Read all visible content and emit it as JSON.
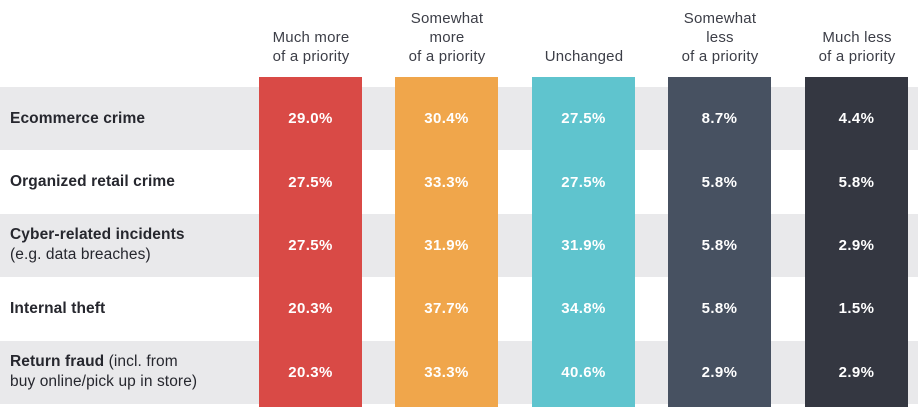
{
  "chart_data": {
    "type": "table",
    "title": "",
    "legend_position": "top",
    "columns": [
      {
        "label": "Much more of a priority",
        "lines": [
          "Much more",
          "of a priority",
          ""
        ],
        "color": "#D94A46"
      },
      {
        "label": "Somewhat more of a priority",
        "lines": [
          "Somewhat",
          "more",
          "of a priority"
        ],
        "color": "#F0A64B"
      },
      {
        "label": "Unchanged",
        "lines": [
          "Unchanged",
          "",
          ""
        ],
        "color": "#5FC4CE"
      },
      {
        "label": "Somewhat less of a priority",
        "lines": [
          "Somewhat",
          "less",
          "of a priority"
        ],
        "color": "#475161"
      },
      {
        "label": "Much less of a priority",
        "lines": [
          "Much less",
          "of a priority",
          ""
        ],
        "color": "#343741"
      }
    ],
    "rows": [
      {
        "label_bold": "Ecommerce crime",
        "label_normal": "",
        "label_line2": "",
        "values": [
          "29.0%",
          "30.4%",
          "27.5%",
          "8.7%",
          "4.4%"
        ],
        "values_numeric": [
          29.0,
          30.4,
          27.5,
          8.7,
          4.4
        ]
      },
      {
        "label_bold": "Organized retail crime",
        "label_normal": "",
        "label_line2": "",
        "values": [
          "27.5%",
          "33.3%",
          "27.5%",
          "5.8%",
          "5.8%"
        ],
        "values_numeric": [
          27.5,
          33.3,
          27.5,
          5.8,
          5.8
        ]
      },
      {
        "label_bold": "Cyber-related incidents",
        "label_normal": "",
        "label_line2": "(e.g. data breaches)",
        "values": [
          "27.5%",
          "31.9%",
          "31.9%",
          "5.8%",
          "2.9%"
        ],
        "values_numeric": [
          27.5,
          31.9,
          31.9,
          5.8,
          2.9
        ]
      },
      {
        "label_bold": "Internal theft",
        "label_normal": "",
        "label_line2": "",
        "values": [
          "20.3%",
          "37.7%",
          "34.8%",
          "5.8%",
          "1.5%"
        ],
        "values_numeric": [
          20.3,
          37.7,
          34.8,
          5.8,
          1.5
        ]
      },
      {
        "label_bold": "Return fraud",
        "label_normal": " (incl. from",
        "label_line2": "buy online/pick up in store)",
        "values": [
          "20.3%",
          "33.3%",
          "40.6%",
          "2.9%",
          "2.9%"
        ],
        "values_numeric": [
          20.3,
          33.3,
          40.6,
          2.9,
          2.9
        ]
      }
    ],
    "styles": {
      "band_gray": "#E9E9EB",
      "band_white": "#FFFFFF",
      "header_text_color": "#3C3E47",
      "row_label_color": "#26272E",
      "value_text_color": "#FFFFFF"
    }
  }
}
